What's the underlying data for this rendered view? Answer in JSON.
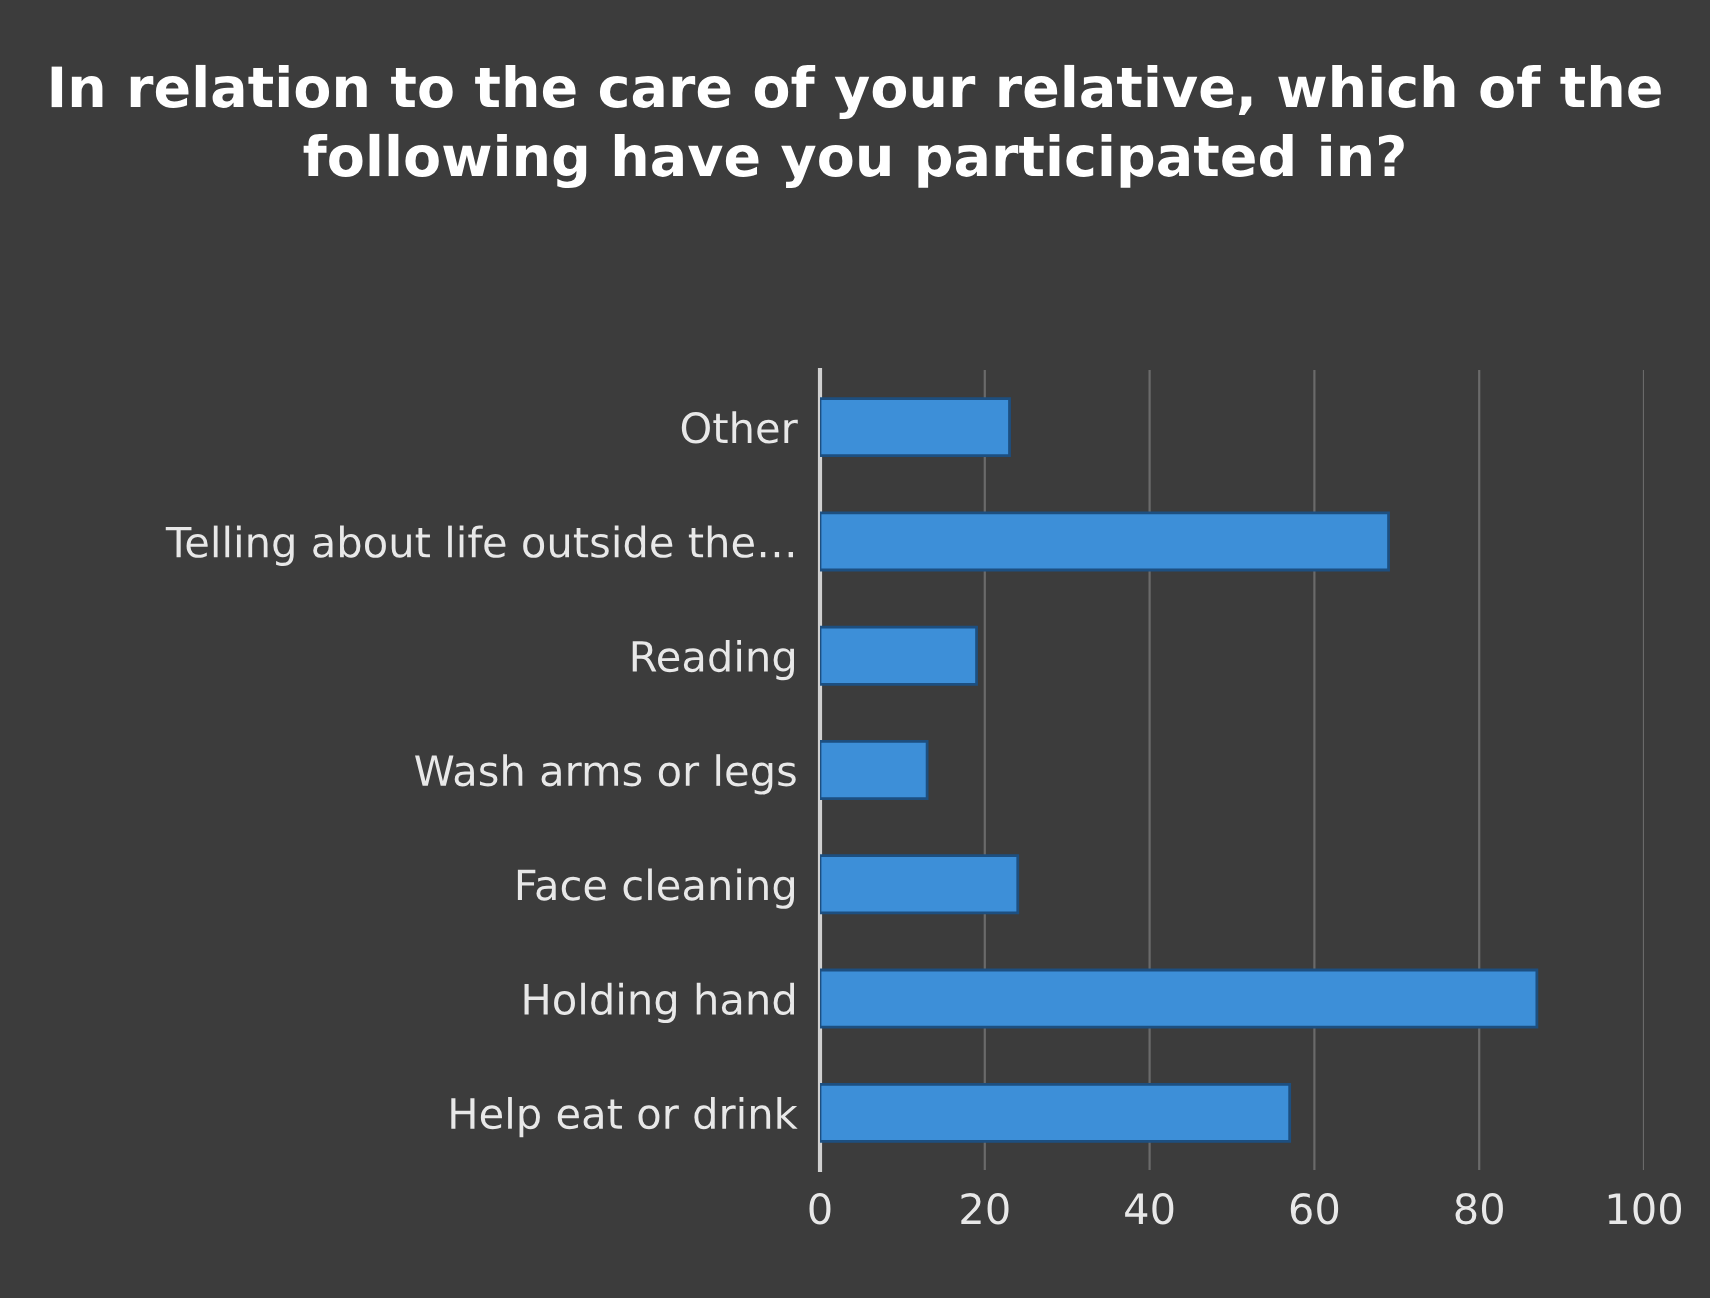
{
  "chart_data": {
    "type": "bar",
    "orientation": "horizontal",
    "title": "In relation to the care of your relative, which of the following have you participated in?",
    "categories": [
      "Other",
      "Telling about life outside the…",
      "Reading",
      "Wash arms or legs",
      "Face cleaning",
      "Holding hand",
      "Help eat or drink"
    ],
    "values": [
      23,
      69,
      19,
      13,
      24,
      87,
      57
    ],
    "color": "#3d8fd8",
    "xlim": [
      0,
      100
    ],
    "xticks": [
      0,
      20,
      40,
      60,
      80,
      100
    ],
    "grid": "x",
    "legend": false
  }
}
